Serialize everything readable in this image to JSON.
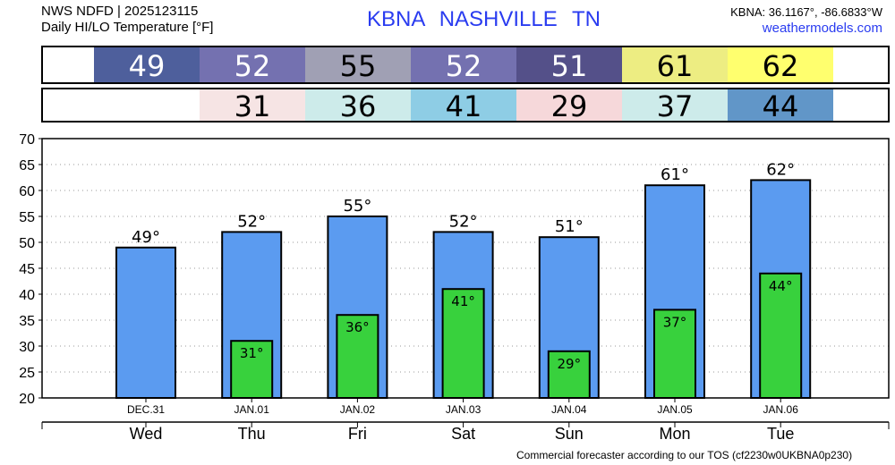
{
  "header": {
    "line1": "NWS NDFD | 2025123115",
    "line2": "Daily HI/LO Temperature [°F]",
    "station": "KBNA  NASHVILLE     TN",
    "coords": "KBNA: 36.1167°, -86.6833°W",
    "site": "weathermodels.com"
  },
  "footer": "Commercial forecaster according to our TOS (cf2230w0UKBNA0p230)",
  "chart_data": {
    "type": "bar",
    "title": "Daily HI/LO Temperature [°F]",
    "ylim": [
      20,
      70
    ],
    "yticks": [
      "20",
      "25",
      "30",
      "35",
      "40",
      "45",
      "50",
      "55",
      "60",
      "65",
      "70"
    ],
    "dates": [
      "DEC.31",
      "JAN.01",
      "JAN.02",
      "JAN.03",
      "JAN.04",
      "JAN.05",
      "JAN.06"
    ],
    "days": [
      "Wed",
      "Thu",
      "Fri",
      "Sat",
      "Sun",
      "Mon",
      "Tue"
    ],
    "series": [
      {
        "name": "High",
        "color": "#5b9bf0",
        "values": [
          49,
          52,
          55,
          52,
          51,
          61,
          62
        ],
        "labels": [
          "49°",
          "52°",
          "55°",
          "52°",
          "51°",
          "61°",
          "62°"
        ]
      },
      {
        "name": "Low",
        "color": "#38d13d",
        "values": [
          null,
          31,
          36,
          41,
          29,
          37,
          44
        ],
        "labels": [
          "",
          "31°",
          "36°",
          "41°",
          "29°",
          "37°",
          "44°"
        ]
      }
    ],
    "hi_table": {
      "values": [
        "49",
        "52",
        "55",
        "52",
        "51",
        "61",
        "62"
      ],
      "colors": [
        "#4e5f9c",
        "#7471b0",
        "#a0a0b4",
        "#7471b0",
        "#545089",
        "#eded82",
        "#ffff6e"
      ],
      "text_colors": [
        "#fff",
        "#fff",
        "#000",
        "#fff",
        "#fff",
        "#000",
        "#000"
      ]
    },
    "lo_table": {
      "values": [
        "",
        "31",
        "36",
        "41",
        "29",
        "37",
        "44"
      ],
      "colors": [
        "#fff",
        "#f6e4e4",
        "#cdebea",
        "#8ecde5",
        "#f6d8da",
        "#cdebea",
        "#6196c8"
      ]
    }
  }
}
